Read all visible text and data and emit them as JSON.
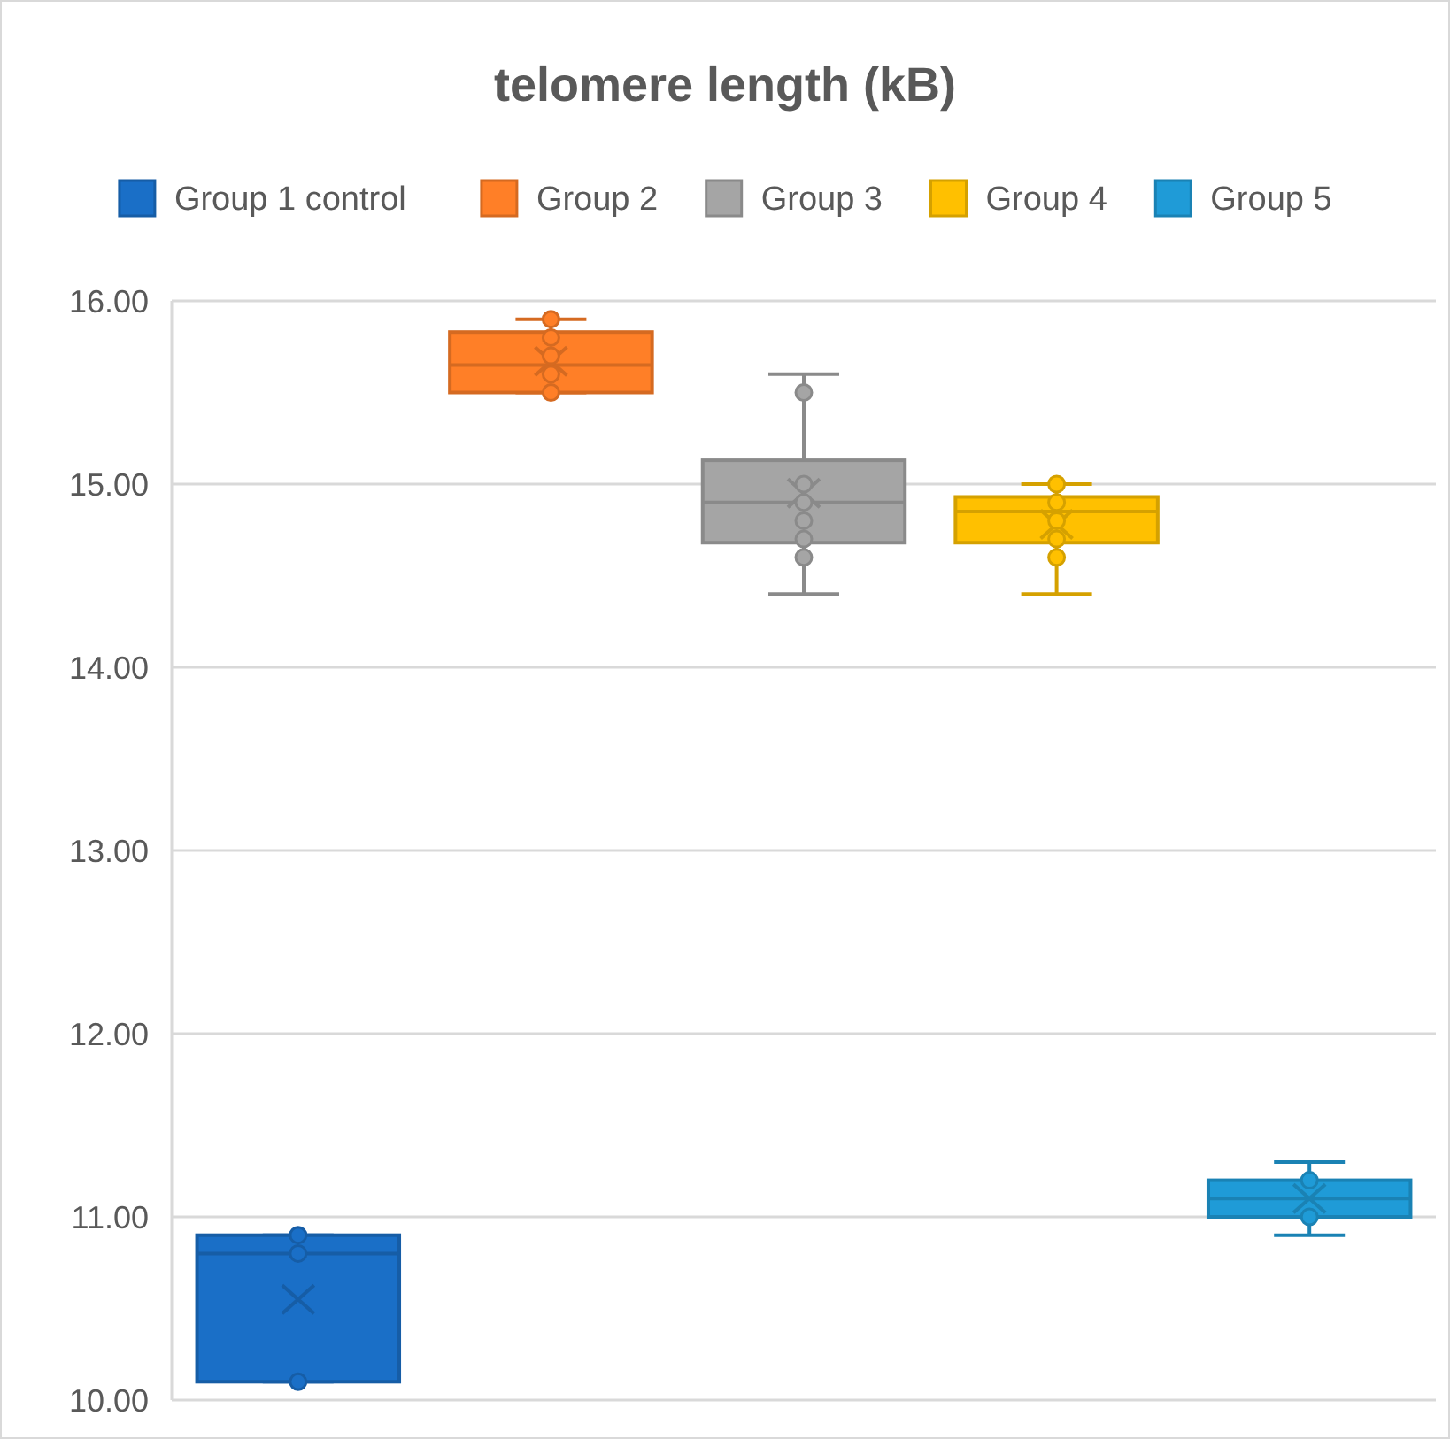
{
  "chart_data": {
    "type": "box",
    "title": "telomere length (kB)",
    "categories": [
      null
    ],
    "series": [
      {
        "name": "Group 1 control",
        "color": "#1a6fc7",
        "boxes": [
          {
            "low": 10.1,
            "q1": 10.1,
            "median": 10.8,
            "q3": 10.9,
            "high": 10.9,
            "mean": 10.55,
            "outliers": [
              10.9,
              10.8,
              10.1
            ]
          }
        ]
      },
      {
        "name": "Group 2",
        "color": "#ff7f27",
        "boxes": [
          {
            "low": 15.5,
            "q1": 15.5,
            "median": 15.65,
            "q3": 15.83,
            "high": 15.9,
            "mean": 15.67,
            "outliers": [
              15.9,
              15.8,
              15.7,
              15.6,
              15.5
            ]
          }
        ]
      },
      {
        "name": "Group 3",
        "color": "#a5a5a5",
        "boxes": [
          {
            "low": 14.4,
            "q1": 14.68,
            "median": 14.9,
            "q3": 15.13,
            "high": 15.6,
            "mean": 14.95,
            "outliers": [
              15.5,
              15.0,
              14.9,
              14.8,
              14.7,
              14.6
            ]
          }
        ]
      },
      {
        "name": "Group 4",
        "color": "#ffc000",
        "boxes": [
          {
            "low": 14.4,
            "q1": 14.68,
            "median": 14.85,
            "q3": 14.93,
            "high": 15.0,
            "mean": 14.78,
            "outliers": [
              15.0,
              14.9,
              14.8,
              14.7,
              14.6
            ]
          }
        ]
      },
      {
        "name": "Group 5",
        "color": "#1f9bd7",
        "boxes": [
          {
            "low": 10.9,
            "q1": 11.0,
            "median": 11.1,
            "q3": 11.2,
            "high": 11.3,
            "mean": 11.1,
            "outliers": [
              11.2,
              11.0
            ]
          }
        ]
      }
    ],
    "ylim": [
      10,
      16
    ],
    "yticks": [
      {
        "value": 10,
        "label": "10.00"
      },
      {
        "value": 11,
        "label": "11.00"
      },
      {
        "value": 12,
        "label": "12.00"
      },
      {
        "value": 13,
        "label": "13.00"
      },
      {
        "value": 14,
        "label": "14.00"
      },
      {
        "value": 15,
        "label": "15.00"
      },
      {
        "value": 16,
        "label": "16.00"
      }
    ],
    "grid": "y",
    "legend": "top",
    "marker": "circle",
    "tick_labels": "y"
  }
}
